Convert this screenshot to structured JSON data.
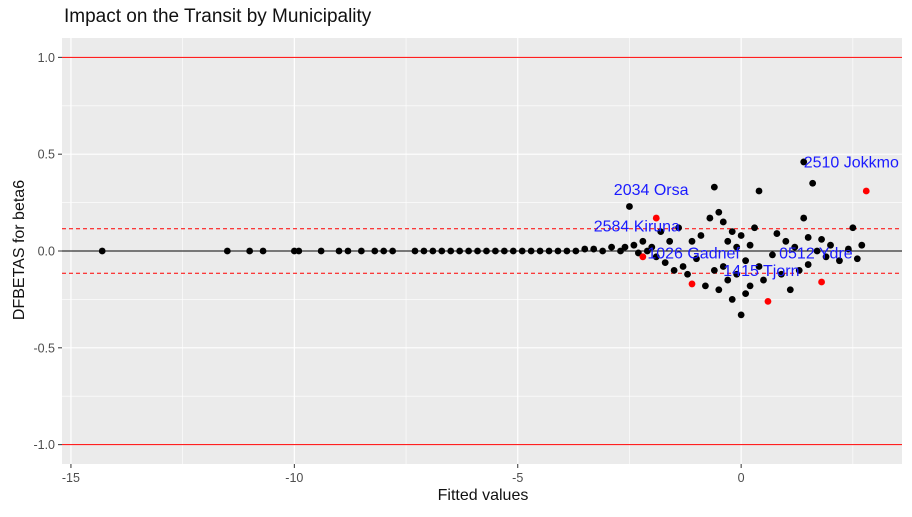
{
  "chart_data": {
    "type": "scatter",
    "title": "Impact on the Transit by Municipality",
    "xlabel": "Fitted values",
    "ylabel": "DFBETAS for beta6",
    "xlim": [
      -15.2,
      3.6
    ],
    "ylim": [
      -1.1,
      1.1
    ],
    "x_ticks": [
      -15,
      -10,
      -5,
      0
    ],
    "x_tick_labels": [
      "-15",
      "-10",
      "-5",
      "0"
    ],
    "y_ticks": [
      -1.0,
      -0.5,
      0.0,
      0.5,
      1.0
    ],
    "y_tick_labels": [
      "-1.0",
      "-0.5",
      "0.0",
      "0.5",
      "1.0"
    ],
    "grid": true,
    "reference_lines": {
      "solid_red": [
        1.0,
        -1.0
      ],
      "dashed_red": [
        0.115,
        -0.115
      ],
      "solid_black": [
        0.0
      ]
    },
    "colors": {
      "panel_background": "#ebebeb",
      "grid": "#ffffff",
      "points": "#000000",
      "highlight_points": "#ff0000",
      "labels": "#1a1aff",
      "reference_red": "#ff0000"
    },
    "x_range_note_removed": true,
    "points": [
      {
        "x": -14.3,
        "y": 0.0
      },
      {
        "x": -11.5,
        "y": 0.0
      },
      {
        "x": -11.0,
        "y": 0.0
      },
      {
        "x": -10.7,
        "y": 0.0
      },
      {
        "x": -10.0,
        "y": 0.0
      },
      {
        "x": -9.9,
        "y": 0.0
      },
      {
        "x": -9.4,
        "y": 0.0
      },
      {
        "x": -9.0,
        "y": 0.0
      },
      {
        "x": -8.8,
        "y": 0.0
      },
      {
        "x": -8.5,
        "y": 0.0
      },
      {
        "x": -8.2,
        "y": 0.0
      },
      {
        "x": -8.0,
        "y": 0.0
      },
      {
        "x": -7.8,
        "y": 0.0
      },
      {
        "x": -7.3,
        "y": 0.0
      },
      {
        "x": -7.1,
        "y": 0.0
      },
      {
        "x": -6.9,
        "y": 0.0
      },
      {
        "x": -6.7,
        "y": 0.0
      },
      {
        "x": -6.5,
        "y": 0.0
      },
      {
        "x": -6.3,
        "y": 0.0
      },
      {
        "x": -6.1,
        "y": 0.0
      },
      {
        "x": -5.9,
        "y": 0.0
      },
      {
        "x": -5.7,
        "y": 0.0
      },
      {
        "x": -5.5,
        "y": 0.0
      },
      {
        "x": -5.3,
        "y": 0.0
      },
      {
        "x": -5.1,
        "y": 0.0
      },
      {
        "x": -4.9,
        "y": 0.0
      },
      {
        "x": -4.7,
        "y": 0.0
      },
      {
        "x": -4.5,
        "y": 0.0
      },
      {
        "x": -4.3,
        "y": 0.0
      },
      {
        "x": -4.1,
        "y": 0.0
      },
      {
        "x": -3.9,
        "y": 0.0
      },
      {
        "x": -3.7,
        "y": 0.0
      },
      {
        "x": -3.5,
        "y": 0.01
      },
      {
        "x": -3.3,
        "y": 0.01
      },
      {
        "x": -3.1,
        "y": 0.0
      },
      {
        "x": -2.9,
        "y": 0.02
      },
      {
        "x": -2.7,
        "y": 0.0
      },
      {
        "x": -2.6,
        "y": 0.02
      },
      {
        "x": -2.5,
        "y": 0.23
      },
      {
        "x": -2.4,
        "y": 0.03
      },
      {
        "x": -2.3,
        "y": -0.01
      },
      {
        "x": -2.2,
        "y": 0.05
      },
      {
        "x": -2.1,
        "y": 0.0
      },
      {
        "x": -2.0,
        "y": 0.02
      },
      {
        "x": -1.9,
        "y": -0.03
      },
      {
        "x": -1.8,
        "y": 0.1
      },
      {
        "x": -1.7,
        "y": -0.06
      },
      {
        "x": -1.6,
        "y": 0.05
      },
      {
        "x": -1.5,
        "y": -0.1
      },
      {
        "x": -1.4,
        "y": 0.12
      },
      {
        "x": -1.3,
        "y": -0.08
      },
      {
        "x": -1.2,
        "y": -0.12
      },
      {
        "x": -1.1,
        "y": 0.05
      },
      {
        "x": -1.0,
        "y": -0.04
      },
      {
        "x": -0.9,
        "y": 0.08
      },
      {
        "x": -0.8,
        "y": -0.18
      },
      {
        "x": -0.7,
        "y": 0.17
      },
      {
        "x": -0.6,
        "y": -0.1
      },
      {
        "x": -0.5,
        "y": 0.2
      },
      {
        "x": -0.5,
        "y": -0.2
      },
      {
        "x": -0.4,
        "y": 0.15
      },
      {
        "x": -0.4,
        "y": -0.08
      },
      {
        "x": -0.3,
        "y": 0.05
      },
      {
        "x": -0.3,
        "y": -0.15
      },
      {
        "x": -0.2,
        "y": 0.1
      },
      {
        "x": -0.2,
        "y": -0.25
      },
      {
        "x": -0.1,
        "y": 0.02
      },
      {
        "x": -0.1,
        "y": -0.12
      },
      {
        "x": 0.0,
        "y": -0.33
      },
      {
        "x": 0.0,
        "y": 0.08
      },
      {
        "x": 0.1,
        "y": -0.05
      },
      {
        "x": 0.1,
        "y": -0.22
      },
      {
        "x": 0.2,
        "y": 0.03
      },
      {
        "x": 0.2,
        "y": -0.18
      },
      {
        "x": 0.3,
        "y": 0.12
      },
      {
        "x": 0.4,
        "y": -0.08
      },
      {
        "x": 0.4,
        "y": 0.31
      },
      {
        "x": 0.5,
        "y": -0.15
      },
      {
        "x": -0.6,
        "y": 0.33
      },
      {
        "x": 0.7,
        "y": -0.02
      },
      {
        "x": 0.8,
        "y": 0.09
      },
      {
        "x": 0.9,
        "y": -0.12
      },
      {
        "x": 1.0,
        "y": 0.05
      },
      {
        "x": 1.1,
        "y": -0.2
      },
      {
        "x": 1.2,
        "y": 0.02
      },
      {
        "x": 1.3,
        "y": -0.1
      },
      {
        "x": 1.4,
        "y": 0.17
      },
      {
        "x": 1.4,
        "y": 0.46
      },
      {
        "x": 1.5,
        "y": 0.07
      },
      {
        "x": 1.5,
        "y": -0.07
      },
      {
        "x": 1.6,
        "y": 0.35
      },
      {
        "x": 1.7,
        "y": 0.0
      },
      {
        "x": 1.8,
        "y": 0.06
      },
      {
        "x": 1.9,
        "y": -0.03
      },
      {
        "x": 2.0,
        "y": 0.03
      },
      {
        "x": 2.2,
        "y": -0.05
      },
      {
        "x": 2.4,
        "y": 0.01
      },
      {
        "x": 2.5,
        "y": 0.12
      },
      {
        "x": 2.6,
        "y": -0.04
      },
      {
        "x": 2.7,
        "y": 0.03
      }
    ],
    "highlighted_points": [
      {
        "x": 2.8,
        "y": 0.31
      },
      {
        "x": -1.9,
        "y": 0.17
      },
      {
        "x": -2.2,
        "y": -0.03
      },
      {
        "x": -1.1,
        "y": -0.17
      },
      {
        "x": 0.6,
        "y": -0.26
      },
      {
        "x": 1.8,
        "y": -0.16
      }
    ],
    "annotations": [
      {
        "text": "2510 Jokkmo",
        "x": 1.4,
        "y": 0.43
      },
      {
        "text": "2034 Orsa",
        "x": -2.85,
        "y": 0.29
      },
      {
        "text": "2584 Kiruna",
        "x": -3.3,
        "y": 0.1
      },
      {
        "text": "1026 Gadnef",
        "x": -2.1,
        "y": -0.04
      },
      {
        "text": "0512 Ydre",
        "x": 0.85,
        "y": -0.04
      },
      {
        "text": "1415 Tjorn",
        "x": -0.4,
        "y": -0.13
      }
    ]
  }
}
